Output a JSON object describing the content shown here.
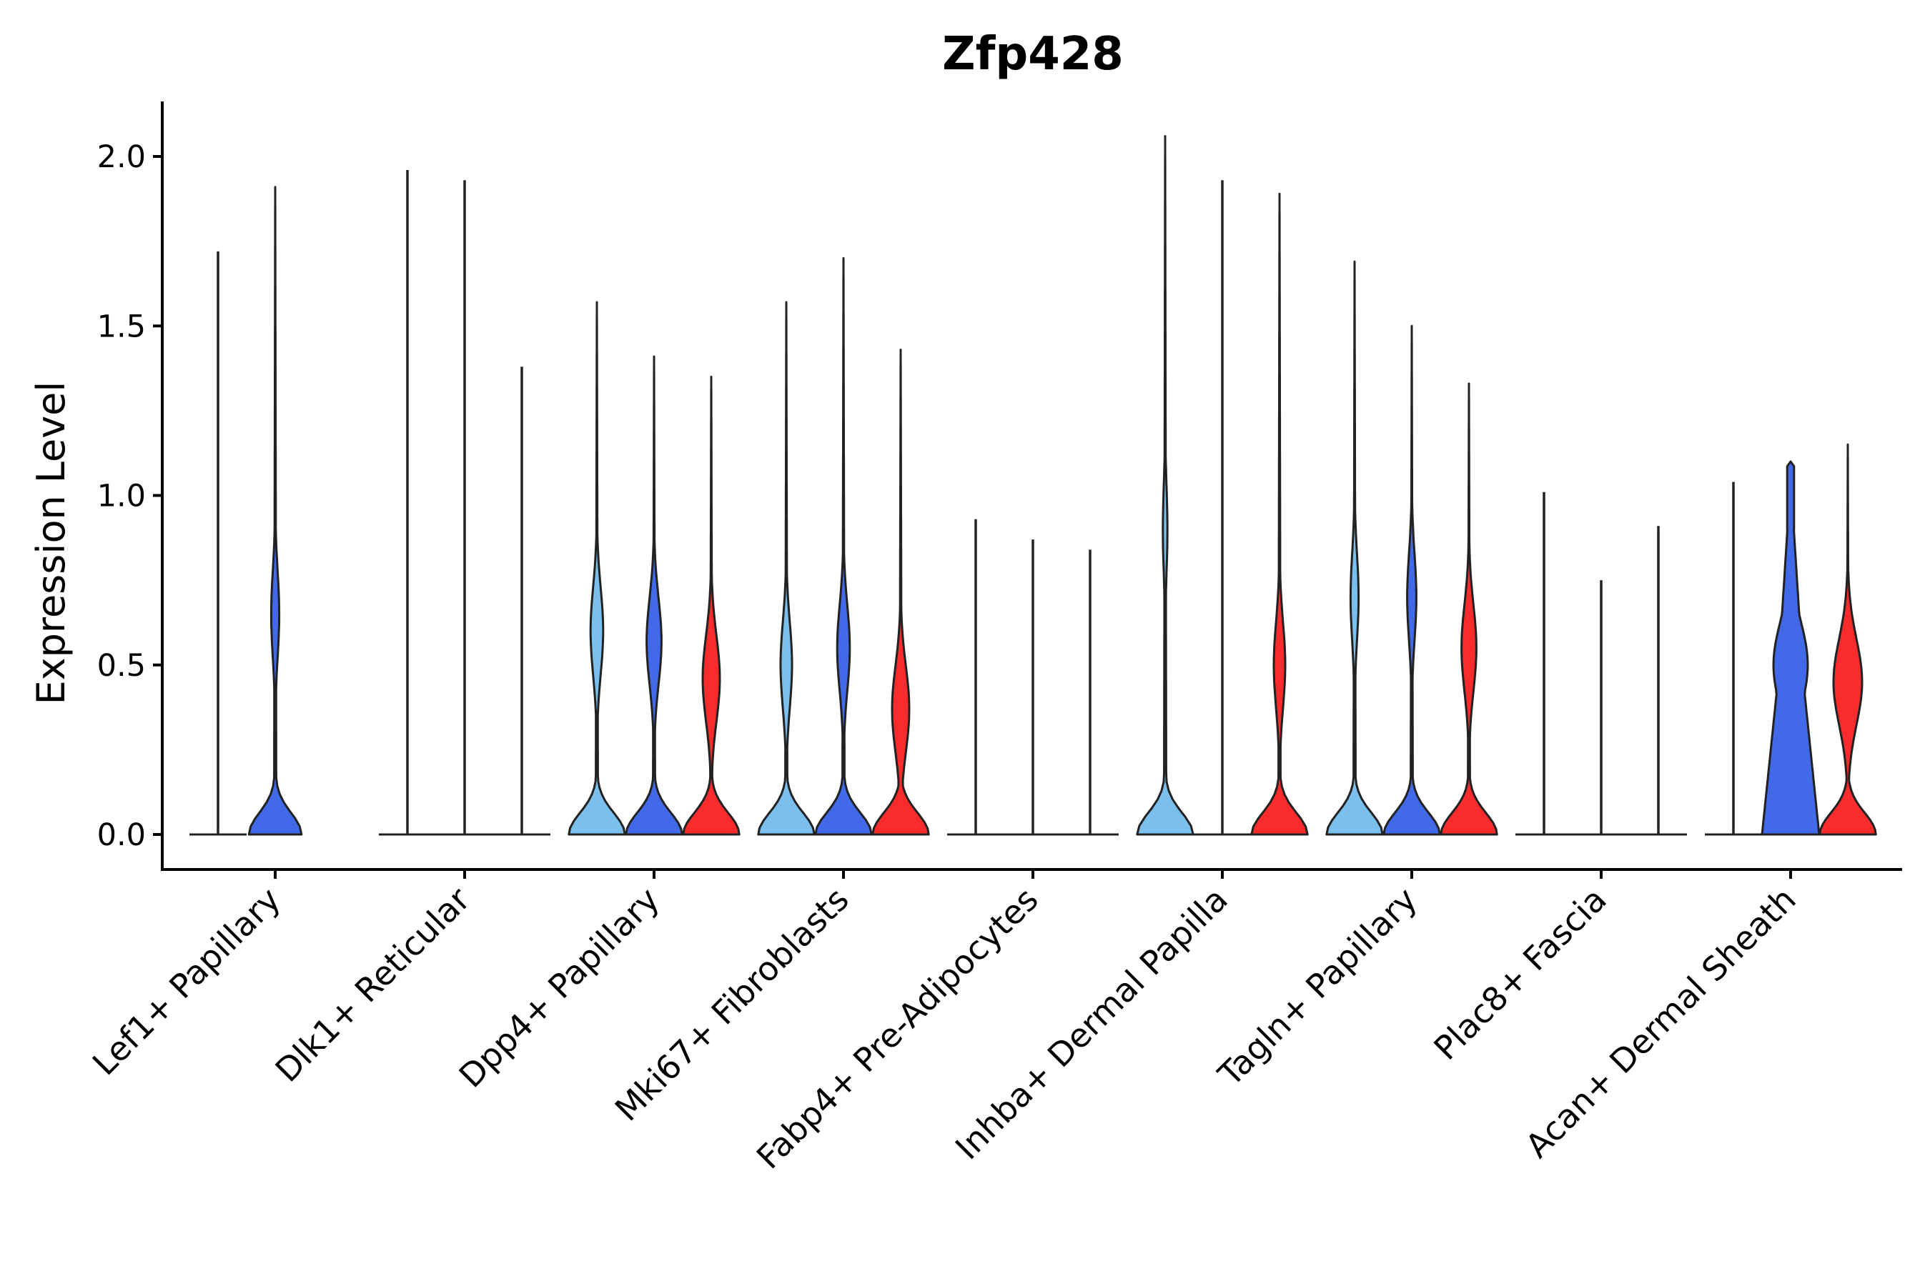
{
  "chart_data": {
    "type": "violin",
    "title": "Zfp428",
    "xlabel": "",
    "ylabel": "Expression Level",
    "ylim": [
      -0.1,
      2.16
    ],
    "yticks": [
      "0.0",
      "0.5",
      "1.0",
      "1.5",
      "2.0"
    ],
    "ytick_values": [
      0.0,
      0.5,
      1.0,
      1.5,
      2.0
    ],
    "conditions": [
      {
        "name": "condition 1",
        "color": "#7BBFEC"
      },
      {
        "name": "condition 2",
        "color": "#4169E8"
      },
      {
        "name": "condition 3",
        "color": "#F82C2C"
      }
    ],
    "categories": [
      "Lef1+ Papillary",
      "Dlk1+ Reticular",
      "Dpp4+ Papillary",
      "Mki67+ Fibroblasts",
      "Fabp4+ Pre-Adipocytes",
      "Inhba+ Dermal Papilla",
      "Tagln+ Papillary",
      "Plac8+ Fascia",
      "Acan+ Dermal Sheath"
    ],
    "violins": [
      {
        "category": 0,
        "condition": 0,
        "max": 1.72,
        "shape": "flat"
      },
      {
        "category": 0,
        "condition": 1,
        "max": 1.91,
        "shape": "base-bulge",
        "base_width": 0.92,
        "mid_center": 0.65,
        "mid_width": 0.14
      },
      {
        "category": 1,
        "condition": 0,
        "max": 1.96,
        "shape": "flat"
      },
      {
        "category": 1,
        "condition": 1,
        "max": 1.93,
        "shape": "flat"
      },
      {
        "category": 1,
        "condition": 2,
        "max": 1.38,
        "shape": "flat"
      },
      {
        "category": 2,
        "condition": 0,
        "max": 1.57,
        "shape": "base-bulge",
        "base_width": 0.98,
        "mid_center": 0.6,
        "mid_width": 0.22
      },
      {
        "category": 2,
        "condition": 1,
        "max": 1.41,
        "shape": "base-bulge",
        "base_width": 0.98,
        "mid_center": 0.57,
        "mid_width": 0.26
      },
      {
        "category": 2,
        "condition": 2,
        "max": 1.35,
        "shape": "base-bulge",
        "base_width": 0.98,
        "mid_center": 0.46,
        "mid_width": 0.3
      },
      {
        "category": 3,
        "condition": 0,
        "max": 1.57,
        "shape": "base-bulge",
        "base_width": 0.98,
        "mid_center": 0.5,
        "mid_width": 0.2
      },
      {
        "category": 3,
        "condition": 1,
        "max": 1.7,
        "shape": "base-bulge",
        "base_width": 0.98,
        "mid_center": 0.55,
        "mid_width": 0.22
      },
      {
        "category": 3,
        "condition": 2,
        "max": 1.43,
        "shape": "base-bulge",
        "base_width": 0.98,
        "mid_center": 0.37,
        "mid_width": 0.3
      },
      {
        "category": 4,
        "condition": 0,
        "max": 0.93,
        "shape": "flat"
      },
      {
        "category": 4,
        "condition": 1,
        "max": 0.87,
        "shape": "flat"
      },
      {
        "category": 4,
        "condition": 2,
        "max": 0.84,
        "shape": "flat"
      },
      {
        "category": 5,
        "condition": 0,
        "max": 2.06,
        "shape": "base-bulge",
        "base_width": 0.98,
        "mid_center": 0.9,
        "mid_width": 0.08
      },
      {
        "category": 5,
        "condition": 1,
        "max": 1.93,
        "shape": "flat"
      },
      {
        "category": 5,
        "condition": 2,
        "max": 1.89,
        "shape": "base-bulge",
        "base_width": 0.98,
        "mid_center": 0.5,
        "mid_width": 0.2
      },
      {
        "category": 6,
        "condition": 0,
        "max": 1.69,
        "shape": "base-bulge",
        "base_width": 0.98,
        "mid_center": 0.7,
        "mid_width": 0.14
      },
      {
        "category": 6,
        "condition": 1,
        "max": 1.5,
        "shape": "base-bulge",
        "base_width": 0.98,
        "mid_center": 0.7,
        "mid_width": 0.16
      },
      {
        "category": 6,
        "condition": 2,
        "max": 1.33,
        "shape": "base-bulge",
        "base_width": 0.98,
        "mid_center": 0.55,
        "mid_width": 0.26
      },
      {
        "category": 7,
        "condition": 0,
        "max": 1.01,
        "shape": "flat"
      },
      {
        "category": 7,
        "condition": 1,
        "max": 0.75,
        "shape": "flat"
      },
      {
        "category": 7,
        "condition": 2,
        "max": 0.91,
        "shape": "flat"
      },
      {
        "category": 8,
        "condition": 0,
        "max": 1.04,
        "shape": "flat"
      },
      {
        "category": 8,
        "condition": 1,
        "max": 1.1,
        "shape": "broad",
        "base_width": 1.0,
        "mid_center": 0.5,
        "mid_width": 0.6
      },
      {
        "category": 8,
        "condition": 2,
        "max": 1.15,
        "shape": "base-bulge",
        "base_width": 0.98,
        "mid_center": 0.45,
        "mid_width": 0.5
      }
    ]
  }
}
